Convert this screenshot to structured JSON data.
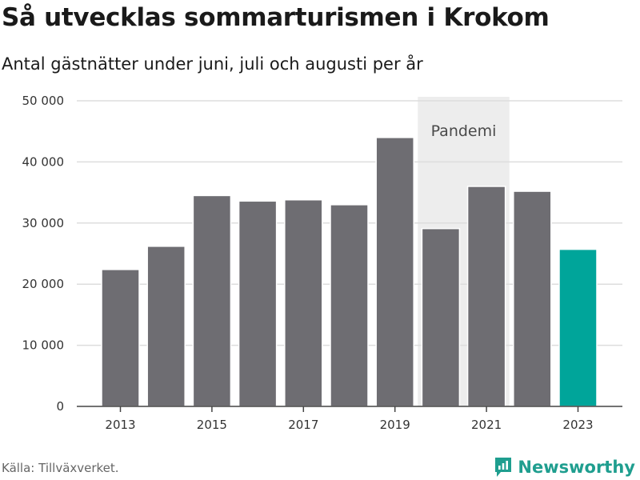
{
  "title": "Så utvecklas sommarturismen i Krokom",
  "subtitle": "Antal gästnätter under juni, juli och augusti per år",
  "source": "Källa: Tillväxverket.",
  "brand": {
    "name": "Newsworthy",
    "icon": "newsworthy-logo-icon",
    "color": "#1f9e8f"
  },
  "colors": {
    "bar": "#6e6d72",
    "highlight": "#00a59a",
    "region": "#ededed",
    "grid": "#dddddd"
  },
  "chart_data": {
    "type": "bar",
    "categories": [
      "2013",
      "2014",
      "2015",
      "2016",
      "2017",
      "2018",
      "2019",
      "2020",
      "2021",
      "2022",
      "2023"
    ],
    "values": [
      22400,
      26200,
      34500,
      33600,
      33800,
      33000,
      44000,
      29100,
      36000,
      35200,
      25700
    ],
    "highlight_index": 10,
    "x_tick_labels": [
      "2013",
      "2015",
      "2017",
      "2019",
      "2021",
      "2023"
    ],
    "y_ticks": [
      0,
      10000,
      20000,
      30000,
      40000,
      50000
    ],
    "y_tick_labels": [
      "0",
      "10 000",
      "20 000",
      "30 000",
      "40 000",
      "50 000"
    ],
    "ylim": [
      0,
      50000
    ],
    "grid": true,
    "xlabel": "",
    "ylabel": "",
    "annotation": {
      "label": "Pandemi",
      "from": "2020",
      "to": "2021"
    }
  }
}
